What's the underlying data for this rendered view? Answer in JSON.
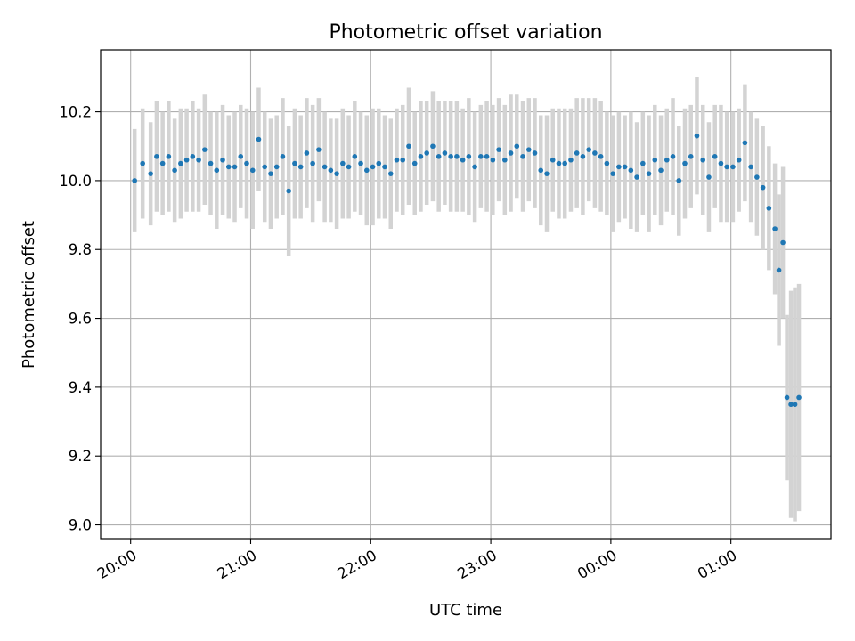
{
  "chart_data": {
    "type": "scatter",
    "title": "Photometric offset variation",
    "xlabel": "UTC time",
    "ylabel": "Photometric offset",
    "x_axis_kind": "time",
    "x_start": "20:00",
    "xlim": [
      "19:45",
      "25:50"
    ],
    "ylim": [
      8.96,
      10.38
    ],
    "x_ticks": [
      "20:00",
      "21:00",
      "22:00",
      "23:00",
      "00:00",
      "01:00"
    ],
    "y_ticks": [
      9.0,
      9.2,
      9.4,
      9.6,
      9.8,
      10.0,
      10.2
    ],
    "y_tick_labels": [
      "9.0",
      "9.2",
      "9.4",
      "9.6",
      "9.8",
      "10.0",
      "10.2"
    ],
    "grid": true,
    "colors": {
      "marker": "#1f77b4",
      "errorbar": "#d3d3d3"
    },
    "series": [
      {
        "x": [
          "20:02",
          "20:06",
          "20:10",
          "20:13",
          "20:16",
          "20:19",
          "20:22",
          "20:25",
          "20:28",
          "20:31",
          "20:34",
          "20:37",
          "20:40",
          "20:43",
          "20:46",
          "20:49",
          "20:52",
          "20:55",
          "20:58",
          "21:01",
          "21:04",
          "21:07",
          "21:10",
          "21:13",
          "21:16",
          "21:19",
          "21:22",
          "21:25",
          "21:28",
          "21:31",
          "21:34",
          "21:37",
          "21:40",
          "21:43",
          "21:46",
          "21:49",
          "21:52",
          "21:55",
          "21:58",
          "22:01",
          "22:04",
          "22:07",
          "22:10",
          "22:13",
          "22:16",
          "22:19",
          "22:22",
          "22:25",
          "22:28",
          "22:31",
          "22:34",
          "22:37",
          "22:40",
          "22:43",
          "22:46",
          "22:49",
          "22:52",
          "22:55",
          "22:58",
          "23:01",
          "23:04",
          "23:07",
          "23:10",
          "23:13",
          "23:16",
          "23:19",
          "23:22",
          "23:25",
          "23:28",
          "23:31",
          "23:34",
          "23:37",
          "23:40",
          "23:43",
          "23:46",
          "23:49",
          "23:52",
          "23:55",
          "23:58",
          "24:01",
          "24:04",
          "24:07",
          "24:10",
          "24:13",
          "24:16",
          "24:19",
          "24:22",
          "24:25",
          "24:28",
          "24:31",
          "24:34",
          "24:37",
          "24:40",
          "24:43",
          "24:46",
          "24:49",
          "24:52",
          "24:55",
          "24:58",
          "25:01",
          "25:04",
          "25:07",
          "25:10",
          "25:13",
          "25:16",
          "25:19",
          "25:22",
          "25:24",
          "25:26",
          "25:28",
          "25:30",
          "25:32",
          "25:34"
        ],
        "y": [
          10.0,
          10.05,
          10.02,
          10.07,
          10.05,
          10.07,
          10.03,
          10.05,
          10.06,
          10.07,
          10.06,
          10.09,
          10.05,
          10.03,
          10.06,
          10.04,
          10.04,
          10.07,
          10.05,
          10.03,
          10.12,
          10.04,
          10.02,
          10.04,
          10.07,
          9.97,
          10.05,
          10.04,
          10.08,
          10.05,
          10.09,
          10.04,
          10.03,
          10.02,
          10.05,
          10.04,
          10.07,
          10.05,
          10.03,
          10.04,
          10.05,
          10.04,
          10.02,
          10.06,
          10.06,
          10.1,
          10.05,
          10.07,
          10.08,
          10.1,
          10.07,
          10.08,
          10.07,
          10.07,
          10.06,
          10.07,
          10.04,
          10.07,
          10.07,
          10.06,
          10.09,
          10.06,
          10.08,
          10.1,
          10.07,
          10.09,
          10.08,
          10.03,
          10.02,
          10.06,
          10.05,
          10.05,
          10.06,
          10.08,
          10.07,
          10.09,
          10.08,
          10.07,
          10.05,
          10.02,
          10.04,
          10.04,
          10.03,
          10.01,
          10.05,
          10.02,
          10.06,
          10.03,
          10.06,
          10.07,
          10.0,
          10.05,
          10.07,
          10.13,
          10.06,
          10.01,
          10.07,
          10.05,
          10.04,
          10.04,
          10.06,
          10.11,
          10.04,
          10.01,
          9.98,
          9.92,
          9.86,
          9.74,
          9.82,
          9.37,
          9.35,
          9.35,
          9.37
        ],
        "yerr": [
          0.15,
          0.16,
          0.15,
          0.16,
          0.15,
          0.16,
          0.15,
          0.16,
          0.15,
          0.16,
          0.15,
          0.16,
          0.15,
          0.17,
          0.16,
          0.15,
          0.16,
          0.15,
          0.16,
          0.17,
          0.15,
          0.16,
          0.16,
          0.15,
          0.17,
          0.19,
          0.16,
          0.15,
          0.16,
          0.17,
          0.15,
          0.16,
          0.15,
          0.16,
          0.16,
          0.15,
          0.16,
          0.15,
          0.16,
          0.17,
          0.16,
          0.15,
          0.16,
          0.15,
          0.16,
          0.17,
          0.15,
          0.16,
          0.15,
          0.16,
          0.16,
          0.15,
          0.16,
          0.16,
          0.15,
          0.17,
          0.16,
          0.15,
          0.16,
          0.16,
          0.15,
          0.16,
          0.17,
          0.15,
          0.16,
          0.15,
          0.16,
          0.16,
          0.17,
          0.15,
          0.16,
          0.16,
          0.15,
          0.16,
          0.17,
          0.15,
          0.16,
          0.16,
          0.15,
          0.17,
          0.16,
          0.15,
          0.17,
          0.16,
          0.15,
          0.17,
          0.16,
          0.16,
          0.15,
          0.17,
          0.16,
          0.16,
          0.15,
          0.17,
          0.16,
          0.16,
          0.15,
          0.17,
          0.16,
          0.16,
          0.15,
          0.17,
          0.16,
          0.17,
          0.18,
          0.18,
          0.19,
          0.22,
          0.22,
          0.24,
          0.33,
          0.34,
          0.33
        ]
      }
    ]
  }
}
